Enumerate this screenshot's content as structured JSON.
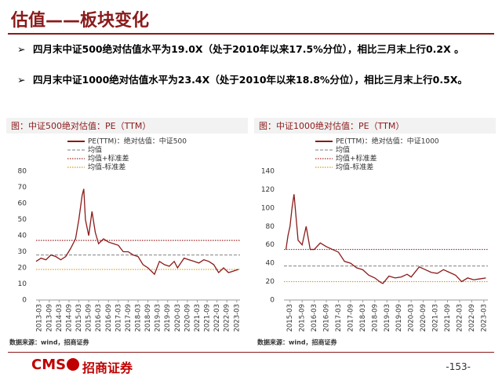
{
  "title": "估值——板块变化",
  "bullets": [
    "四月末中证500绝对估值水平为19.0X（处于2010年以来17.5%分位），相比三月末上行0.2X 。",
    "四月末中证1000绝对估值水平为23.4X（处于2010年以来18.8%分位），相比三月末上行0.5X。"
  ],
  "footer": {
    "logo_en": "CMS",
    "logo_cn": "招商证券",
    "page": "-153-"
  },
  "chart_data": [
    {
      "type": "line",
      "title": "图：中证500绝对估值：PE（TTM）",
      "source": "数据来源：wind，招商证券",
      "xlim": [
        "2013-01",
        "2023-05"
      ],
      "xticks": [
        "2013-03",
        "2013-09",
        "2014-03",
        "2014-09",
        "2015-03",
        "2015-09",
        "2016-03",
        "2016-09",
        "2017-03",
        "2017-09",
        "2018-03",
        "2018-09",
        "2019-03",
        "2019-09",
        "2020-03",
        "2020-09",
        "2021-03",
        "2021-09",
        "2022-03",
        "2022-09",
        "2023-03"
      ],
      "ylim": [
        0,
        80
      ],
      "yticks": [
        0,
        10,
        20,
        30,
        40,
        50,
        60,
        70,
        80
      ],
      "x": [
        "2013-01",
        "2013-04",
        "2013-07",
        "2013-10",
        "2014-01",
        "2014-04",
        "2014-07",
        "2014-10",
        "2015-01",
        "2015-03",
        "2015-05",
        "2015-06",
        "2015-07",
        "2015-09",
        "2015-11",
        "2016-01",
        "2016-03",
        "2016-06",
        "2016-09",
        "2016-12",
        "2017-03",
        "2017-06",
        "2017-09",
        "2017-12",
        "2018-03",
        "2018-06",
        "2018-09",
        "2018-12",
        "2019-01",
        "2019-04",
        "2019-07",
        "2019-10",
        "2020-01",
        "2020-03",
        "2020-07",
        "2020-10",
        "2021-01",
        "2021-04",
        "2021-07",
        "2021-10",
        "2022-01",
        "2022-04",
        "2022-07",
        "2022-10",
        "2023-01",
        "2023-04"
      ],
      "series": [
        {
          "name": "PE(TTM)：绝对估值：中证500",
          "color": "#8b1a1a",
          "values": [
            24,
            26,
            25,
            28,
            27,
            25,
            27,
            32,
            38,
            50,
            65,
            69,
            50,
            40,
            55,
            42,
            35,
            38,
            36,
            35,
            34,
            30,
            30,
            28,
            27,
            22,
            20,
            17,
            16,
            24,
            22,
            21,
            24,
            20,
            26,
            25,
            24,
            23,
            25,
            24,
            22,
            17,
            20,
            17,
            18,
            19
          ]
        }
      ],
      "reference_lines": [
        {
          "name": "均值",
          "color": "#999999",
          "style": "dashed",
          "value": 28
        },
        {
          "name": "均值+标准差",
          "color": "#a52a2a",
          "style": "dotted",
          "value": 37
        },
        {
          "name": "均值-标准差",
          "color": "#d4a017",
          "style": "dotted",
          "value": 19
        }
      ]
    },
    {
      "type": "line",
      "title": "图：中证1000绝对估值：PE（TTM）",
      "source": "数据来源：wind，招商证券",
      "xlim": [
        "2014-12",
        "2023-05"
      ],
      "xticks": [
        "2015-03",
        "2015-09",
        "2016-03",
        "2016-09",
        "2017-03",
        "2017-09",
        "2018-03",
        "2018-09",
        "2019-03",
        "2019-09",
        "2020-03",
        "2020-09",
        "2021-03",
        "2021-09",
        "2022-03",
        "2022-09",
        "2023-03"
      ],
      "ylim": [
        0,
        140
      ],
      "yticks": [
        0,
        20,
        40,
        60,
        80,
        100,
        120,
        140
      ],
      "x": [
        "2015-01",
        "2015-02",
        "2015-03",
        "2015-04",
        "2015-05",
        "2015-06",
        "2015-07",
        "2015-09",
        "2015-11",
        "2016-01",
        "2016-03",
        "2016-06",
        "2016-09",
        "2016-12",
        "2017-03",
        "2017-06",
        "2017-09",
        "2017-12",
        "2018-03",
        "2018-06",
        "2018-09",
        "2018-12",
        "2019-01",
        "2019-04",
        "2019-07",
        "2019-10",
        "2020-01",
        "2020-03",
        "2020-07",
        "2020-10",
        "2021-01",
        "2021-04",
        "2021-07",
        "2021-10",
        "2022-01",
        "2022-04",
        "2022-07",
        "2022-10",
        "2023-01",
        "2023-04"
      ],
      "series": [
        {
          "name": "PE(TTM)：绝对估值：中证1000",
          "color": "#8b1a1a",
          "values": [
            55,
            70,
            80,
            100,
            115,
            90,
            65,
            60,
            80,
            55,
            55,
            62,
            58,
            55,
            52,
            42,
            40,
            35,
            33,
            27,
            24,
            19,
            18,
            26,
            24,
            25,
            28,
            25,
            36,
            33,
            30,
            29,
            33,
            30,
            27,
            20,
            24,
            22,
            23,
            24
          ]
        }
      ],
      "reference_lines": [
        {
          "name": "均值",
          "color": "#999999",
          "style": "dashed",
          "value": 37
        },
        {
          "name": "均值+标准差",
          "color": "#a52a2a",
          "style": "dotted",
          "value": 55
        },
        {
          "name": "均值-标准差",
          "color": "#d4a017",
          "style": "dotted",
          "value": 20
        }
      ]
    }
  ]
}
